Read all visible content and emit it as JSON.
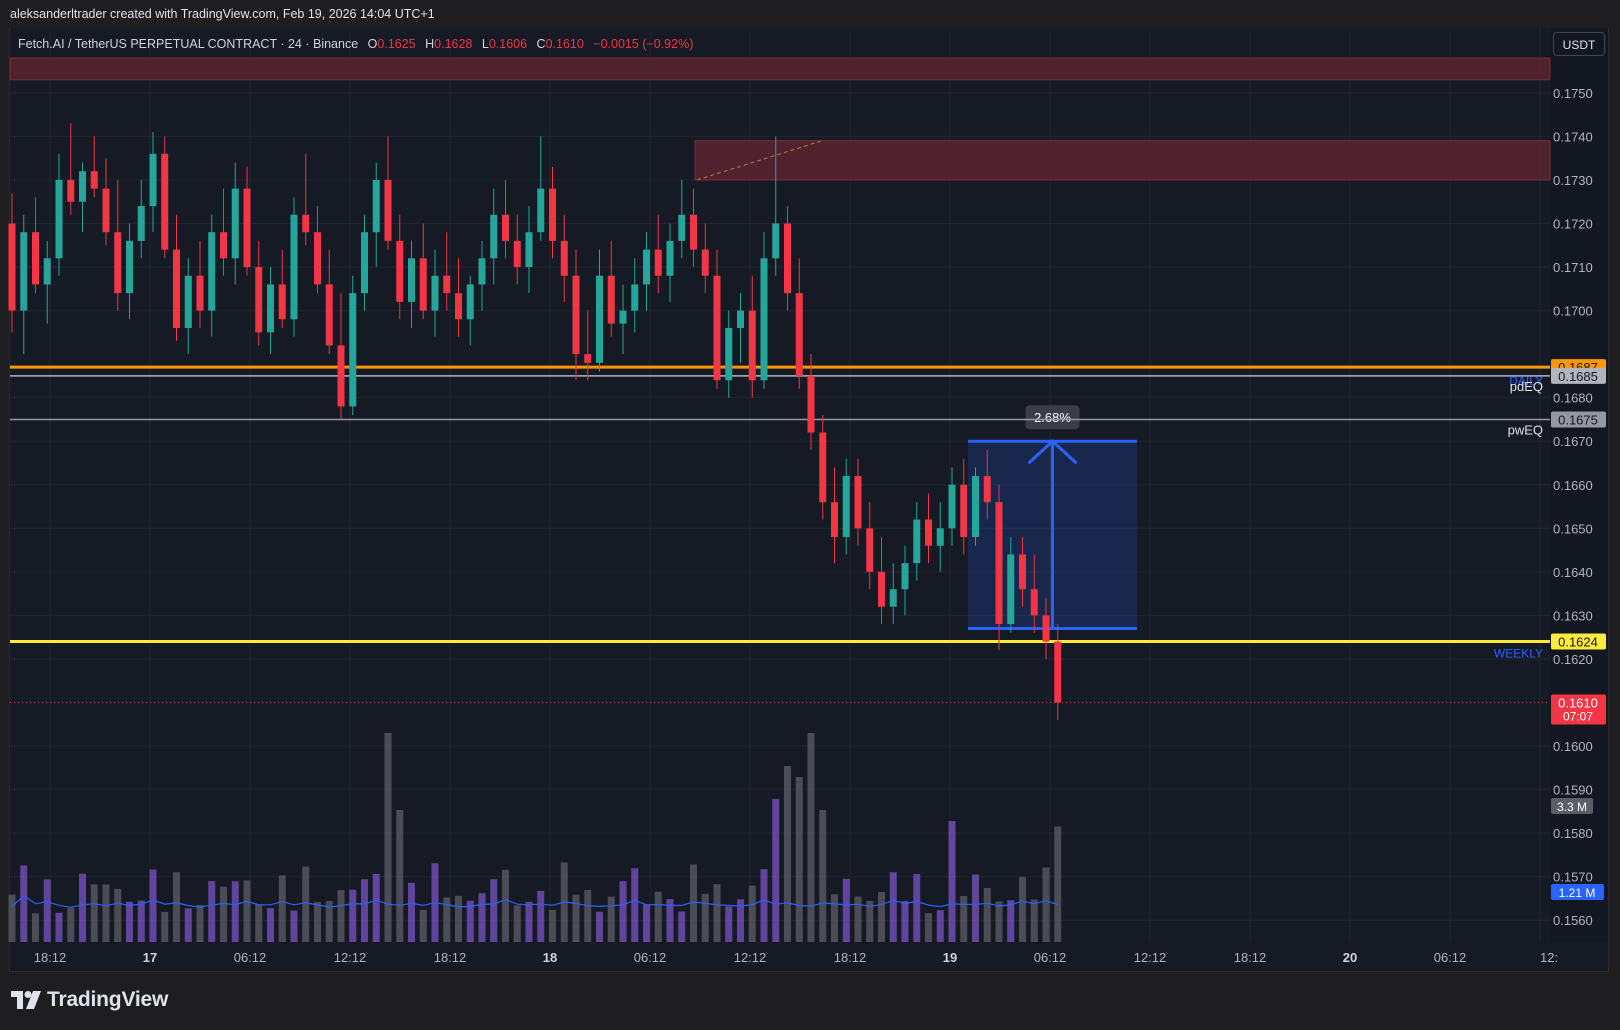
{
  "attribution": "aleksanderltrader created with TradingView.com, Feb 19, 2026 14:04 UTC+1",
  "legend": {
    "symbol": "Fetch.AI / TetherUS PERPETUAL CONTRACT · 24 · Binance",
    "open_label": "O",
    "open": "0.1625",
    "high_label": "H",
    "high": "0.1628",
    "low_label": "L",
    "low": "0.1606",
    "close_label": "C",
    "close": "0.1610",
    "change": "−0.0015 (−0.92%)"
  },
  "currency_button": "USDT",
  "footer_logo_text": "TradingView",
  "colors": {
    "background": "#161a25",
    "up": "#26a69a",
    "down": "#f23645",
    "volume_up": "#7b54c4",
    "volume_down": "#5d5d66",
    "volume_ma": "#2962ff",
    "supply_zone": "#5a2530",
    "daily_level": "#ff9800",
    "weekly_level": "#ffeb3b",
    "equilibrium": "#b2b5be",
    "measure_box": "#2962ff"
  },
  "chart_data": {
    "type": "candlestick",
    "interval": "24 min",
    "y_axis": {
      "min": 0.1555,
      "max": 0.1758,
      "ticks": [
        "0.1750",
        "0.1740",
        "0.1730",
        "0.1720",
        "0.1710",
        "0.1700",
        "0.1680",
        "0.1670",
        "0.1660",
        "0.1650",
        "0.1640",
        "0.1630",
        "0.1620",
        "0.1600",
        "0.1590",
        "0.1580",
        "0.1570",
        "0.1560"
      ]
    },
    "x_axis": {
      "labels": [
        "18:12",
        "17",
        "06:12",
        "12:12",
        "18:12",
        "18",
        "06:12",
        "12:12",
        "18:12",
        "19",
        "06:12",
        "12:12",
        "18:12",
        "20",
        "06:12",
        "12:"
      ],
      "bold": [
        "17",
        "18",
        "19",
        "20"
      ]
    },
    "grid": true,
    "ohlc_approx": [
      [
        0.172,
        0.1727,
        0.1695,
        0.17
      ],
      [
        0.17,
        0.1722,
        0.169,
        0.1718
      ],
      [
        0.1718,
        0.1726,
        0.1704,
        0.1706
      ],
      [
        0.1706,
        0.1716,
        0.1697,
        0.1712
      ],
      [
        0.1712,
        0.1736,
        0.1708,
        0.173
      ],
      [
        0.173,
        0.1743,
        0.1722,
        0.1725
      ],
      [
        0.1725,
        0.1734,
        0.1718,
        0.1732
      ],
      [
        0.1732,
        0.174,
        0.1726,
        0.1728
      ],
      [
        0.1728,
        0.1735,
        0.1715,
        0.1718
      ],
      [
        0.1718,
        0.173,
        0.17,
        0.1704
      ],
      [
        0.1704,
        0.172,
        0.1698,
        0.1716
      ],
      [
        0.1716,
        0.173,
        0.1712,
        0.1724
      ],
      [
        0.1724,
        0.1741,
        0.1718,
        0.1736
      ],
      [
        0.1736,
        0.174,
        0.1712,
        0.1714
      ],
      [
        0.1714,
        0.1722,
        0.1693,
        0.1696
      ],
      [
        0.1696,
        0.1712,
        0.169,
        0.1708
      ],
      [
        0.1708,
        0.1716,
        0.1696,
        0.17
      ],
      [
        0.17,
        0.1722,
        0.1694,
        0.1718
      ],
      [
        0.1718,
        0.1728,
        0.1708,
        0.1712
      ],
      [
        0.1712,
        0.1734,
        0.1706,
        0.1728
      ],
      [
        0.1728,
        0.1733,
        0.1708,
        0.171
      ],
      [
        0.171,
        0.1716,
        0.1692,
        0.1695
      ],
      [
        0.1695,
        0.171,
        0.169,
        0.1706
      ],
      [
        0.1706,
        0.1714,
        0.1696,
        0.1698
      ],
      [
        0.1698,
        0.1726,
        0.1694,
        0.1722
      ],
      [
        0.1722,
        0.1736,
        0.1715,
        0.1718
      ],
      [
        0.1718,
        0.1724,
        0.1704,
        0.1706
      ],
      [
        0.1706,
        0.1714,
        0.169,
        0.1692
      ],
      [
        0.1692,
        0.1704,
        0.1675,
        0.1678
      ],
      [
        0.1678,
        0.1708,
        0.1676,
        0.1704
      ],
      [
        0.1704,
        0.1722,
        0.17,
        0.1718
      ],
      [
        0.1718,
        0.1734,
        0.171,
        0.173
      ],
      [
        0.173,
        0.174,
        0.1714,
        0.1716
      ],
      [
        0.1716,
        0.1722,
        0.1698,
        0.1702
      ],
      [
        0.1702,
        0.1716,
        0.1696,
        0.1712
      ],
      [
        0.1712,
        0.172,
        0.1698,
        0.17
      ],
      [
        0.17,
        0.1714,
        0.1694,
        0.1708
      ],
      [
        0.1708,
        0.1718,
        0.17,
        0.1704
      ],
      [
        0.1704,
        0.1712,
        0.1694,
        0.1698
      ],
      [
        0.1698,
        0.1708,
        0.1692,
        0.1706
      ],
      [
        0.1706,
        0.1716,
        0.17,
        0.1712
      ],
      [
        0.1712,
        0.1728,
        0.1706,
        0.1722
      ],
      [
        0.1722,
        0.173,
        0.1712,
        0.1716
      ],
      [
        0.1716,
        0.1722,
        0.1706,
        0.171
      ],
      [
        0.171,
        0.1724,
        0.1704,
        0.1718
      ],
      [
        0.1718,
        0.174,
        0.1716,
        0.1728
      ],
      [
        0.1728,
        0.1733,
        0.1712,
        0.1716
      ],
      [
        0.1716,
        0.1722,
        0.1702,
        0.1708
      ],
      [
        0.1708,
        0.1714,
        0.1684,
        0.169
      ],
      [
        0.169,
        0.17,
        0.1684,
        0.1688
      ],
      [
        0.1688,
        0.1714,
        0.1686,
        0.1708
      ],
      [
        0.1708,
        0.1716,
        0.1694,
        0.1697
      ],
      [
        0.1697,
        0.1706,
        0.169,
        0.17
      ],
      [
        0.17,
        0.1712,
        0.1695,
        0.1706
      ],
      [
        0.1706,
        0.1718,
        0.17,
        0.1714
      ],
      [
        0.1714,
        0.1722,
        0.1704,
        0.1708
      ],
      [
        0.1708,
        0.172,
        0.1702,
        0.1716
      ],
      [
        0.1716,
        0.173,
        0.1712,
        0.1722
      ],
      [
        0.1722,
        0.1728,
        0.171,
        0.1714
      ],
      [
        0.1714,
        0.172,
        0.1704,
        0.1708
      ],
      [
        0.1708,
        0.1714,
        0.1682,
        0.1684
      ],
      [
        0.1684,
        0.17,
        0.168,
        0.1696
      ],
      [
        0.1696,
        0.1704,
        0.1688,
        0.17
      ],
      [
        0.17,
        0.1708,
        0.168,
        0.1684
      ],
      [
        0.1684,
        0.1718,
        0.1682,
        0.1712
      ],
      [
        0.1712,
        0.174,
        0.1708,
        0.172
      ],
      [
        0.172,
        0.1724,
        0.17,
        0.1704
      ],
      [
        0.1704,
        0.1712,
        0.1682,
        0.1685
      ],
      [
        0.1685,
        0.169,
        0.1668,
        0.1672
      ],
      [
        0.1672,
        0.1676,
        0.1652,
        0.1656
      ],
      [
        0.1656,
        0.1664,
        0.1642,
        0.1648
      ],
      [
        0.1648,
        0.1666,
        0.1644,
        0.1662
      ],
      [
        0.1662,
        0.1666,
        0.1646,
        0.165
      ],
      [
        0.165,
        0.1656,
        0.1636,
        0.164
      ],
      [
        0.164,
        0.1648,
        0.1628,
        0.1632
      ],
      [
        0.1632,
        0.1642,
        0.1628,
        0.1636
      ],
      [
        0.1636,
        0.1646,
        0.163,
        0.1642
      ],
      [
        0.1642,
        0.1656,
        0.1638,
        0.1652
      ],
      [
        0.1652,
        0.1658,
        0.1642,
        0.1646
      ],
      [
        0.1646,
        0.1656,
        0.164,
        0.165
      ],
      [
        0.165,
        0.1664,
        0.1646,
        0.166
      ],
      [
        0.166,
        0.1666,
        0.1644,
        0.1648
      ],
      [
        0.1648,
        0.1664,
        0.1646,
        0.1662
      ],
      [
        0.1662,
        0.1668,
        0.1652,
        0.1656
      ],
      [
        0.1656,
        0.166,
        0.1622,
        0.1628
      ],
      [
        0.1628,
        0.1648,
        0.1626,
        0.1644
      ],
      [
        0.1644,
        0.1648,
        0.1632,
        0.1636
      ],
      [
        0.1636,
        0.1644,
        0.1626,
        0.163
      ],
      [
        0.163,
        0.1634,
        0.162,
        0.1624
      ],
      [
        0.1624,
        0.1628,
        0.1606,
        0.161
      ]
    ],
    "volume_axis_max_label": "3.3 M",
    "volume_ma_label": "1.21 M",
    "horizontal_levels": [
      {
        "name": "DAILY",
        "price": 0.1687,
        "tag": "0.1687",
        "color": "#ff9800"
      },
      {
        "name": "pdEQ",
        "price": 0.1685,
        "tag": "0.1685",
        "color": "#b2b5be"
      },
      {
        "name": "pwEQ",
        "price": 0.1675,
        "tag": "0.1675",
        "color": "#9598a1"
      },
      {
        "name": "WEEKLY",
        "price": 0.1624,
        "tag": "0.1624",
        "color": "#ffeb3b"
      }
    ],
    "zones": [
      {
        "kind": "supply",
        "top": 0.1758,
        "bottom": 0.1753
      },
      {
        "kind": "supply",
        "top": 0.1739,
        "bottom": 0.173
      }
    ],
    "measurement": {
      "label": "2.68%",
      "low": 0.1627,
      "high": 0.167
    },
    "last_price": {
      "value": "0.1610",
      "countdown": "07:07"
    },
    "label_texts": {
      "daily": "DAILY",
      "pdeq": "pdEQ",
      "pweq": "pwEQ",
      "weekly": "WEEKLY"
    }
  }
}
